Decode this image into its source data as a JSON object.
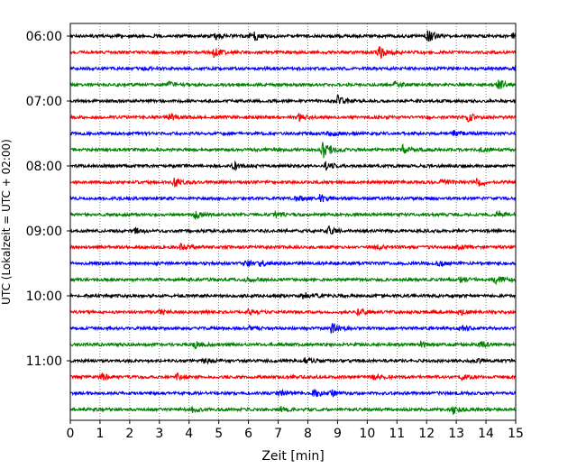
{
  "chart_data": {
    "type": "line",
    "title": "",
    "xlabel": "Zeit  [min]",
    "ylabel": "UTC (Lokalzeit = UTC + 02:00)",
    "xlim": [
      0,
      15
    ],
    "xticks": [
      0,
      1,
      2,
      3,
      4,
      5,
      6,
      7,
      8,
      9,
      10,
      11,
      12,
      13,
      14,
      15
    ],
    "ytick_labels": [
      "06:00",
      "07:00",
      "08:00",
      "09:00",
      "10:00",
      "11:00"
    ],
    "trace_interval_min": 15,
    "start_time": "06:00",
    "end_time": "11:45",
    "grid": "vertical dotted at each minute",
    "colors": [
      "#000000",
      "#ff0000",
      "#0000ff",
      "#008000"
    ],
    "series": [
      {
        "time": "06:00",
        "color": "#000000",
        "events": [
          [
            4.9,
            0.3
          ],
          [
            6.1,
            0.8
          ],
          [
            12.0,
            0.8
          ],
          [
            14.9,
            0.3
          ]
        ]
      },
      {
        "time": "06:15",
        "color": "#ff0000",
        "events": [
          [
            4.8,
            0.6
          ],
          [
            10.4,
            0.8
          ]
        ]
      },
      {
        "time": "06:30",
        "color": "#0000ff",
        "events": [
          [
            2.3,
            0.2
          ],
          [
            15.0,
            0.3
          ]
        ]
      },
      {
        "time": "06:45",
        "color": "#008000",
        "events": [
          [
            3.3,
            0.3
          ],
          [
            10.9,
            0.3
          ],
          [
            14.4,
            0.6
          ]
        ]
      },
      {
        "time": "07:00",
        "color": "#000000",
        "events": [
          [
            9.0,
            0.6
          ]
        ]
      },
      {
        "time": "07:15",
        "color": "#ff0000",
        "events": [
          [
            3.3,
            0.6
          ],
          [
            7.7,
            0.4
          ],
          [
            13.4,
            0.5
          ]
        ]
      },
      {
        "time": "07:30",
        "color": "#0000ff",
        "events": [
          [
            8.7,
            0.4
          ],
          [
            12.9,
            0.3
          ]
        ]
      },
      {
        "time": "07:45",
        "color": "#008000",
        "events": [
          [
            8.5,
            1.0
          ],
          [
            11.2,
            0.5
          ],
          [
            13.8,
            0.3
          ]
        ]
      },
      {
        "time": "08:00",
        "color": "#000000",
        "events": [
          [
            5.5,
            0.4
          ],
          [
            8.6,
            0.5
          ]
        ]
      },
      {
        "time": "08:15",
        "color": "#ff0000",
        "events": [
          [
            3.5,
            0.5
          ],
          [
            12.5,
            0.3
          ],
          [
            13.7,
            0.5
          ]
        ]
      },
      {
        "time": "08:30",
        "color": "#0000ff",
        "events": [
          [
            7.6,
            0.3
          ],
          [
            8.4,
            0.5
          ]
        ]
      },
      {
        "time": "08:45",
        "color": "#008000",
        "events": [
          [
            4.2,
            0.4
          ],
          [
            6.9,
            0.3
          ],
          [
            14.4,
            0.4
          ]
        ]
      },
      {
        "time": "09:00",
        "color": "#000000",
        "events": [
          [
            2.2,
            0.3
          ],
          [
            8.7,
            0.5
          ]
        ]
      },
      {
        "time": "09:15",
        "color": "#ff0000",
        "events": [
          [
            3.7,
            0.4
          ],
          [
            10.3,
            0.3
          ],
          [
            13.0,
            0.3
          ]
        ]
      },
      {
        "time": "09:30",
        "color": "#0000ff",
        "events": [
          [
            5.9,
            0.3
          ],
          [
            6.4,
            0.3
          ],
          [
            12.4,
            0.3
          ]
        ]
      },
      {
        "time": "09:45",
        "color": "#008000",
        "events": [
          [
            5.9,
            0.3
          ],
          [
            13.1,
            0.3
          ],
          [
            14.3,
            0.5
          ]
        ]
      },
      {
        "time": "10:00",
        "color": "#000000",
        "events": [
          [
            7.8,
            0.6
          ]
        ]
      },
      {
        "time": "10:15",
        "color": "#ff0000",
        "events": [
          [
            3.0,
            0.3
          ],
          [
            6.0,
            0.3
          ],
          [
            9.7,
            0.4
          ],
          [
            13.1,
            0.3
          ]
        ]
      },
      {
        "time": "10:30",
        "color": "#0000ff",
        "events": [
          [
            6.0,
            0.2
          ],
          [
            8.8,
            0.6
          ],
          [
            13.1,
            0.3
          ]
        ]
      },
      {
        "time": "10:45",
        "color": "#008000",
        "events": [
          [
            4.2,
            0.4
          ],
          [
            11.8,
            0.3
          ],
          [
            13.8,
            0.3
          ]
        ]
      },
      {
        "time": "11:00",
        "color": "#000000",
        "events": [
          [
            4.5,
            0.5
          ],
          [
            7.9,
            0.3
          ],
          [
            13.7,
            0.2
          ]
        ]
      },
      {
        "time": "11:15",
        "color": "#ff0000",
        "events": [
          [
            1.0,
            0.4
          ],
          [
            3.6,
            0.4
          ],
          [
            10.2,
            0.3
          ],
          [
            13.2,
            0.3
          ]
        ]
      },
      {
        "time": "11:30",
        "color": "#0000ff",
        "events": [
          [
            7.0,
            0.4
          ],
          [
            8.2,
            0.5
          ],
          [
            8.8,
            0.3
          ]
        ]
      },
      {
        "time": "11:45",
        "color": "#008000",
        "events": [
          [
            4.1,
            0.3
          ],
          [
            7.1,
            0.3
          ],
          [
            12.9,
            0.4
          ]
        ]
      }
    ]
  }
}
